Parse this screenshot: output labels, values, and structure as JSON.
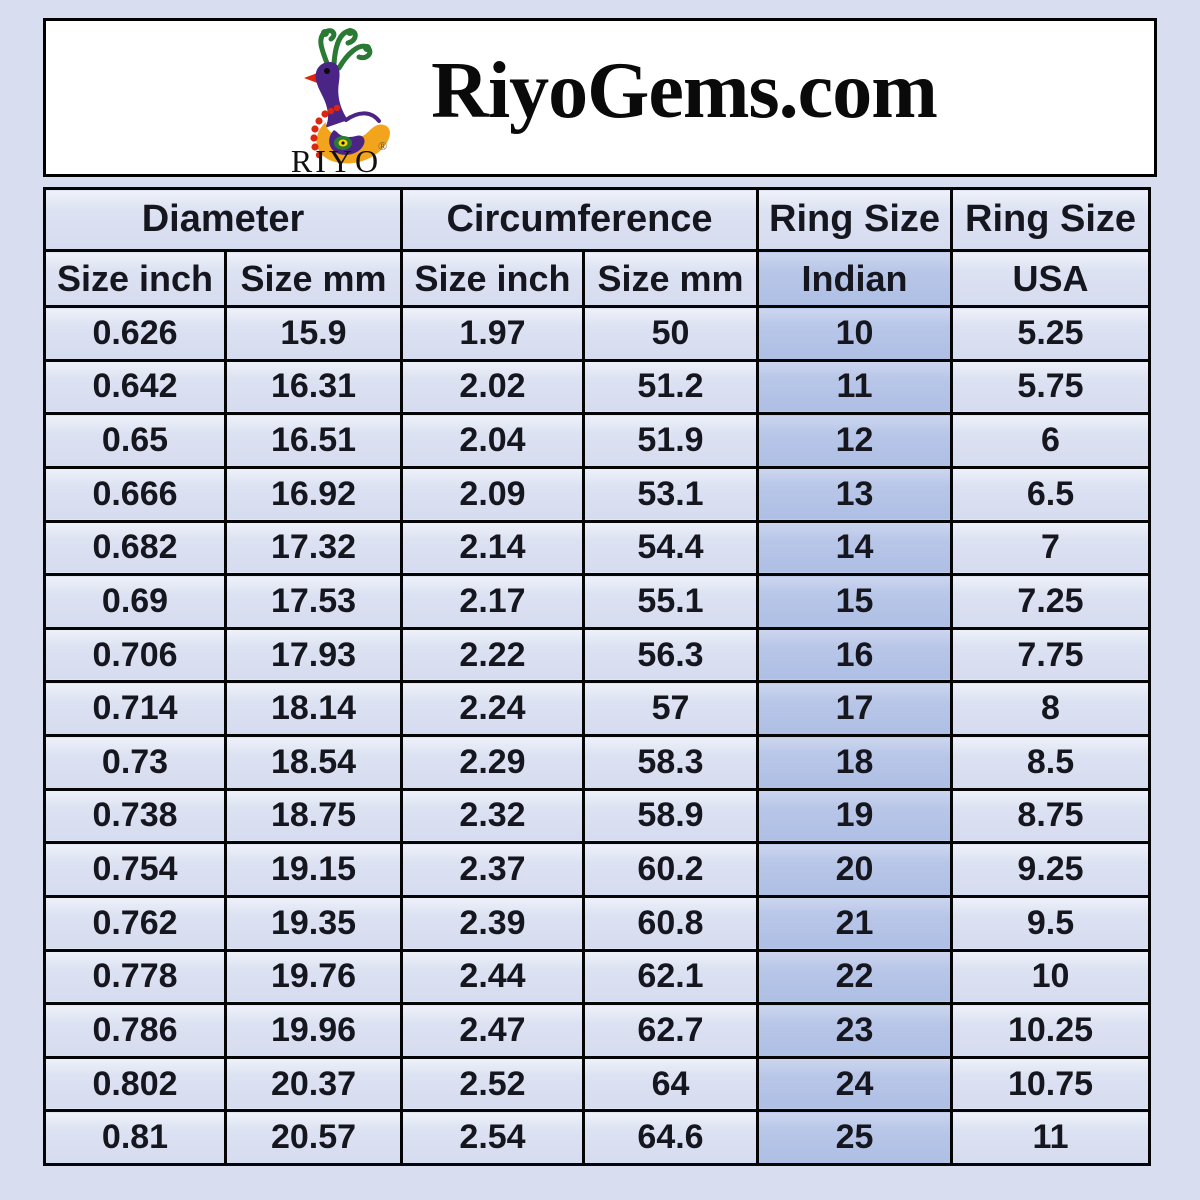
{
  "header": {
    "title": "RiyoGems.com",
    "logo": {
      "brand_text": "RIYO",
      "registered_mark": "®",
      "icon": "riyo-peacock-logo-icon"
    }
  },
  "colors": {
    "page_background": "#d8def0",
    "header_box_background": "#ffffff",
    "cell_background": "#dce2f2",
    "indian_column_background": "#b8c6e8",
    "border": "#050505",
    "text": "#16161f",
    "logo_purple": "#4b2586",
    "logo_orange": "#f2a41c",
    "logo_green": "#2a7a33",
    "logo_red": "#dd2510"
  },
  "chart_data": {
    "type": "table",
    "title": "RiyoGems.com",
    "group_headers": [
      "Diameter",
      "Circumference",
      "Ring Size",
      "Ring Size"
    ],
    "columns": [
      "Size inch",
      "Size mm",
      "Size inch",
      "Size mm",
      "Indian",
      "USA"
    ],
    "rows": [
      [
        "0.626",
        "15.9",
        "1.97",
        "50",
        "10",
        "5.25"
      ],
      [
        "0.642",
        "16.31",
        "2.02",
        "51.2",
        "11",
        "5.75"
      ],
      [
        "0.65",
        "16.51",
        "2.04",
        "51.9",
        "12",
        "6"
      ],
      [
        "0.666",
        "16.92",
        "2.09",
        "53.1",
        "13",
        "6.5"
      ],
      [
        "0.682",
        "17.32",
        "2.14",
        "54.4",
        "14",
        "7"
      ],
      [
        "0.69",
        "17.53",
        "2.17",
        "55.1",
        "15",
        "7.25"
      ],
      [
        "0.706",
        "17.93",
        "2.22",
        "56.3",
        "16",
        "7.75"
      ],
      [
        "0.714",
        "18.14",
        "2.24",
        "57",
        "17",
        "8"
      ],
      [
        "0.73",
        "18.54",
        "2.29",
        "58.3",
        "18",
        "8.5"
      ],
      [
        "0.738",
        "18.75",
        "2.32",
        "58.9",
        "19",
        "8.75"
      ],
      [
        "0.754",
        "19.15",
        "2.37",
        "60.2",
        "20",
        "9.25"
      ],
      [
        "0.762",
        "19.35",
        "2.39",
        "60.8",
        "21",
        "9.5"
      ],
      [
        "0.778",
        "19.76",
        "2.44",
        "62.1",
        "22",
        "10"
      ],
      [
        "0.786",
        "19.96",
        "2.47",
        "62.7",
        "23",
        "10.25"
      ],
      [
        "0.802",
        "20.37",
        "2.52",
        "64",
        "24",
        "10.75"
      ],
      [
        "0.81",
        "20.57",
        "2.54",
        "64.6",
        "25",
        "11"
      ]
    ]
  }
}
